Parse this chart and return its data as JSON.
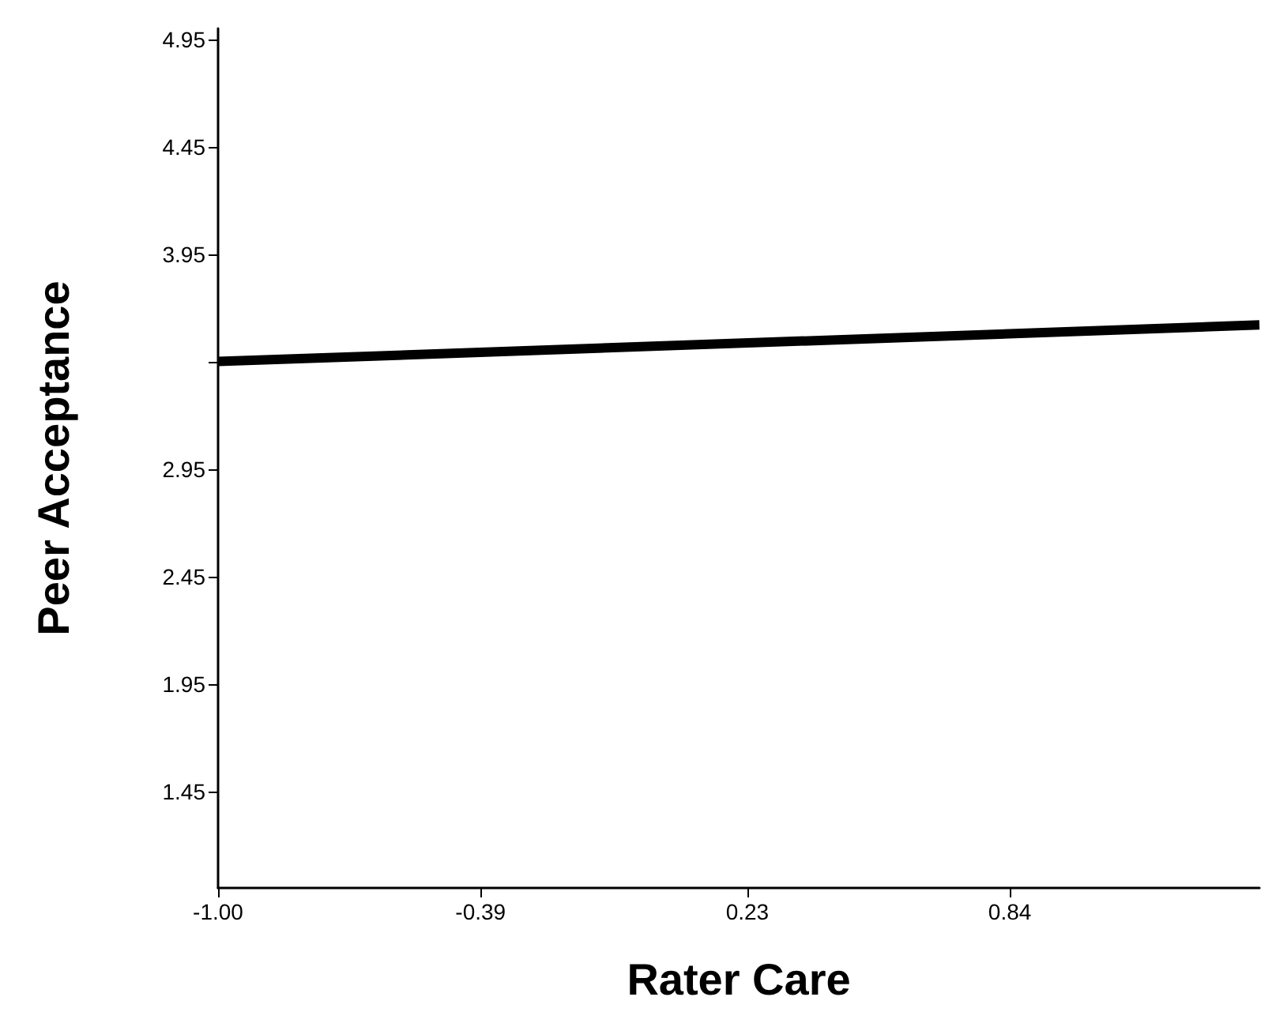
{
  "chart_data": {
    "type": "line",
    "xlabel": "Rater Care",
    "ylabel": "Peer Acceptance",
    "xlim": [
      -1.0,
      1.42
    ],
    "xticks": [
      {
        "value": -1.0,
        "label": "-1.00"
      },
      {
        "value": -0.39,
        "label": "-0.39"
      },
      {
        "value": 0.23,
        "label": "0.23"
      },
      {
        "value": 0.84,
        "label": "0.84"
      }
    ],
    "ylim": [
      1.0,
      5.0
    ],
    "yticks": [
      1.45,
      1.95,
      2.45,
      2.95,
      {
        "value": 3.45,
        "label": null
      },
      3.95,
      4.45,
      4.95
    ],
    "series": [
      {
        "color": "#000000",
        "x": [
          -1.0,
          1.42
        ],
        "values": [
          3.45,
          3.62
        ]
      }
    ],
    "grid": false,
    "marker": "none",
    "line_style": "solid"
  }
}
